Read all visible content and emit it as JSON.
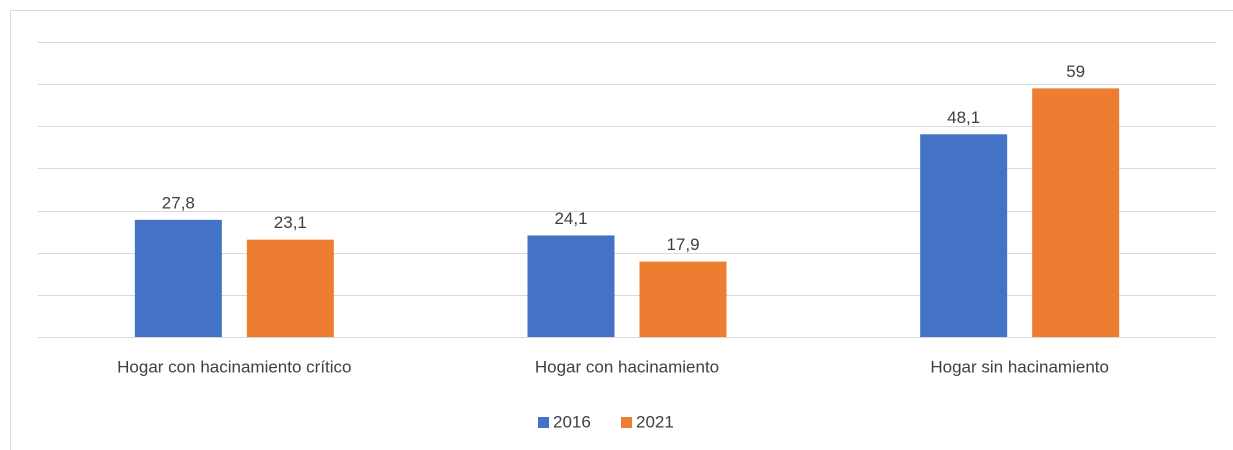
{
  "chart_data": {
    "type": "bar",
    "categories": [
      "Hogar con hacinamiento crítico",
      "Hogar con hacinamiento",
      "Hogar sin hacinamiento"
    ],
    "series": [
      {
        "name": "2016",
        "color": "#4472c4",
        "values": [
          27.8,
          24.1,
          48.1
        ],
        "value_labels": [
          "27,8",
          "24,1",
          "48,1"
        ]
      },
      {
        "name": "2021",
        "color": "#ed7d31",
        "values": [
          23.1,
          17.9,
          59
        ],
        "value_labels": [
          "23,1",
          "17,9",
          "59"
        ]
      }
    ],
    "ylim": [
      0,
      70
    ],
    "yticks": [
      0,
      10,
      20,
      30,
      40,
      50,
      60,
      70
    ],
    "grid": true,
    "legend": "bottom"
  }
}
